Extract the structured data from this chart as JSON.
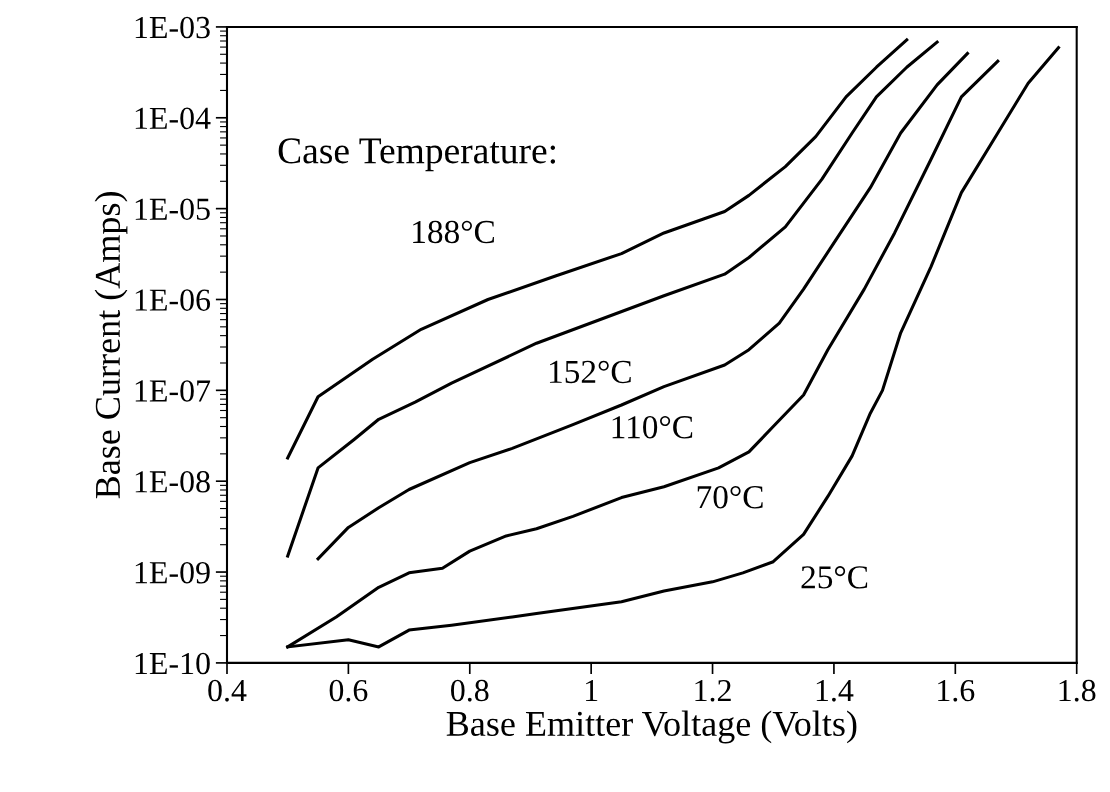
{
  "chart_data": {
    "type": "line",
    "xlabel": "Base Emitter Voltage (Volts)",
    "ylabel": "Base Current (Amps)",
    "log": "y",
    "grid": false,
    "legend": false,
    "marker": "none",
    "line_style": "solid",
    "xlim": [
      0.4,
      1.8
    ],
    "xticks": [
      0.4,
      0.6,
      0.8,
      1,
      1.2,
      1.4,
      1.6,
      1.8
    ],
    "ylim": [
      1e-10,
      0.001
    ],
    "yticks": [
      {
        "value": 1e-10,
        "label": "1E-10"
      },
      {
        "value": 1e-09,
        "label": "1E-09"
      },
      {
        "value": 1e-08,
        "label": "1E-08"
      },
      {
        "value": 1e-07,
        "label": "1E-07"
      },
      {
        "value": 1e-06,
        "label": "1E-06"
      },
      {
        "value": 1e-05,
        "label": "1E-05"
      },
      {
        "value": 0.0001,
        "label": "1E-04"
      },
      {
        "value": 0.001,
        "label": "1E-03"
      }
    ],
    "annotations": [
      "Case Temperature:"
    ],
    "series": [
      {
        "name": "188°C",
        "color": "#000000",
        "x": [
          0.5,
          0.55,
          0.64,
          0.72,
          0.83,
          0.94,
          1.05,
          1.12,
          1.22,
          1.26,
          1.32,
          1.37,
          1.42,
          1.47,
          1.52
        ],
        "values": [
          1.8e-08,
          8.5e-08,
          2.2e-07,
          4.7e-07,
          1e-06,
          1.8e-06,
          3.2e-06,
          5.4e-06,
          9.3e-06,
          1.4e-05,
          2.9e-05,
          6.2e-05,
          0.00017,
          0.00036,
          0.00072
        ]
      },
      {
        "name": "152°C",
        "color": "#000000",
        "x": [
          0.5,
          0.55,
          0.61,
          0.65,
          0.71,
          0.77,
          0.91,
          1.12,
          1.22,
          1.26,
          1.32,
          1.38,
          1.43,
          1.47,
          1.52,
          1.57
        ],
        "values": [
          1.5e-09,
          1.4e-08,
          2.9e-08,
          4.8e-08,
          7.4e-08,
          1.2e-07,
          3.3e-07,
          1.1e-06,
          1.9e-06,
          2.9e-06,
          6.3e-06,
          2.1e-05,
          6.8e-05,
          0.00017,
          0.00036,
          0.00068
        ]
      },
      {
        "name": "110°C",
        "color": "#000000",
        "x": [
          0.55,
          0.6,
          0.65,
          0.7,
          0.8,
          0.87,
          0.97,
          1.05,
          1.12,
          1.22,
          1.26,
          1.31,
          1.35,
          1.4,
          1.46,
          1.51,
          1.57,
          1.62
        ],
        "values": [
          1.4e-09,
          3.1e-09,
          5.1e-09,
          8.1e-09,
          1.6e-08,
          2.3e-08,
          4.2e-08,
          6.9e-08,
          1.1e-07,
          1.9e-07,
          2.8e-07,
          5.5e-07,
          1.3e-06,
          4.2e-06,
          1.7e-05,
          6.8e-05,
          0.00023,
          0.00051
        ]
      },
      {
        "name": "70°C",
        "color": "#000000",
        "x": [
          0.5,
          0.58,
          0.65,
          0.7,
          0.755,
          0.8,
          0.86,
          0.91,
          0.97,
          1.05,
          1.12,
          1.21,
          1.26,
          1.3,
          1.35,
          1.39,
          1.45,
          1.5,
          1.56,
          1.61,
          1.67
        ],
        "values": [
          1.5e-10,
          3.2e-10,
          6.8e-10,
          9.8e-10,
          1.1e-09,
          1.7e-09,
          2.5e-09,
          3e-09,
          4.1e-09,
          6.6e-09,
          8.7e-09,
          1.4e-08,
          2.1e-08,
          4e-08,
          8.9e-08,
          2.8e-07,
          1.3e-06,
          5.4e-06,
          3.5e-05,
          0.00017,
          0.00042
        ]
      },
      {
        "name": "25°C",
        "color": "#000000",
        "x": [
          0.5,
          0.6,
          0.65,
          0.7,
          0.77,
          0.87,
          0.91,
          1.05,
          1.12,
          1.2,
          1.25,
          1.3,
          1.35,
          1.39,
          1.43,
          1.46,
          1.48,
          1.51,
          1.56,
          1.61,
          1.67,
          1.72,
          1.77
        ],
        "values": [
          1.5e-10,
          1.8e-10,
          1.5e-10,
          2.3e-10,
          2.6e-10,
          3.2e-10,
          3.5e-10,
          4.7e-10,
          6.2e-10,
          7.8e-10,
          9.8e-10,
          1.3e-09,
          2.6e-09,
          6.8e-09,
          1.9e-08,
          5.6e-08,
          1e-07,
          4.3e-07,
          2.3e-06,
          1.5e-05,
          6.8e-05,
          0.00024,
          0.00059
        ]
      }
    ]
  }
}
